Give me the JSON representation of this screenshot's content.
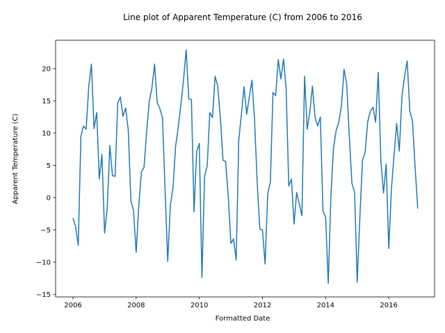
{
  "chart_data": {
    "type": "line",
    "title": "Line plot of Apparent Temperature (C) from 2006 to 2016",
    "xlabel": "Formatted Date",
    "ylabel": "Apparent Temperature (C)",
    "xlim": [
      2005.45,
      2017.45
    ],
    "ylim": [
      -15.4,
      24.4
    ],
    "xticks": [
      2006,
      2008,
      2010,
      2012,
      2014,
      2016
    ],
    "xtick_labels": [
      "2006",
      "2008",
      "2010",
      "2012",
      "2014",
      "2016"
    ],
    "yticks": [
      -15,
      -10,
      -5,
      0,
      5,
      10,
      15,
      20
    ],
    "ytick_labels": [
      "−15",
      "−10",
      "−5",
      "0",
      "5",
      "10",
      "15",
      "20"
    ],
    "color": "#1f77b4",
    "series": [
      {
        "name": "Apparent Temperature (C)",
        "x": [
          2006.0,
          2006.083,
          2006.167,
          2006.25,
          2006.333,
          2006.417,
          2006.5,
          2006.583,
          2006.667,
          2006.75,
          2006.833,
          2006.917,
          2007.0,
          2007.083,
          2007.167,
          2007.25,
          2007.333,
          2007.417,
          2007.5,
          2007.583,
          2007.667,
          2007.75,
          2007.833,
          2007.917,
          2008.0,
          2008.083,
          2008.167,
          2008.25,
          2008.333,
          2008.417,
          2008.5,
          2008.583,
          2008.667,
          2008.75,
          2008.833,
          2008.917,
          2009.0,
          2009.083,
          2009.167,
          2009.25,
          2009.333,
          2009.417,
          2009.5,
          2009.583,
          2009.667,
          2009.75,
          2009.833,
          2009.917,
          2010.0,
          2010.083,
          2010.167,
          2010.25,
          2010.333,
          2010.417,
          2010.5,
          2010.583,
          2010.667,
          2010.75,
          2010.833,
          2010.917,
          2011.0,
          2011.083,
          2011.167,
          2011.25,
          2011.333,
          2011.417,
          2011.5,
          2011.583,
          2011.667,
          2011.75,
          2011.833,
          2011.917,
          2012.0,
          2012.083,
          2012.167,
          2012.25,
          2012.333,
          2012.417,
          2012.5,
          2012.583,
          2012.667,
          2012.75,
          2012.833,
          2012.917,
          2013.0,
          2013.083,
          2013.167,
          2013.25,
          2013.333,
          2013.417,
          2013.5,
          2013.583,
          2013.667,
          2013.75,
          2013.833,
          2013.917,
          2014.0,
          2014.083,
          2014.167,
          2014.25,
          2014.333,
          2014.417,
          2014.5,
          2014.583,
          2014.667,
          2014.75,
          2014.833,
          2014.917,
          2015.0,
          2015.083,
          2015.167,
          2015.25,
          2015.333,
          2015.417,
          2015.5,
          2015.583,
          2015.667,
          2015.75,
          2015.833,
          2015.917,
          2016.0,
          2016.083,
          2016.167,
          2016.25,
          2016.333,
          2016.417,
          2016.5,
          2016.583,
          2016.667,
          2016.75,
          2016.833,
          2016.917
        ],
        "y": [
          -3.2,
          -4.5,
          -7.4,
          9.5,
          11.1,
          10.6,
          17.3,
          20.7,
          10.7,
          13.2,
          2.9,
          6.7,
          -5.5,
          -1.7,
          8.1,
          3.4,
          3.3,
          14.7,
          15.6,
          12.6,
          13.9,
          10.5,
          -0.5,
          -2.0,
          -8.5,
          -1.3,
          4.0,
          4.7,
          10.3,
          15.0,
          17.0,
          20.7,
          14.7,
          13.8,
          12.4,
          1.2,
          -9.9,
          -1.2,
          1.5,
          8.0,
          10.9,
          14.4,
          18.2,
          22.9,
          15.3,
          15.2,
          -2.2,
          7.2,
          8.4,
          -12.4,
          3.3,
          4.9,
          13.2,
          12.4,
          18.8,
          17.3,
          12.4,
          5.8,
          5.6,
          0.2,
          -7.1,
          -6.4,
          -9.7,
          9.0,
          12.9,
          17.2,
          12.9,
          15.6,
          18.2,
          12.0,
          2.3,
          -4.9,
          -5.0,
          -10.3,
          0.6,
          2.4,
          16.3,
          15.8,
          21.4,
          18.4,
          21.5,
          16.8,
          1.8,
          2.9,
          -4.1,
          0.8,
          -1.0,
          -2.8,
          18.8,
          10.6,
          13.3,
          17.3,
          12.4,
          11.1,
          12.5,
          -2.1,
          -3.0,
          -13.3,
          0.2,
          7.7,
          10.4,
          11.7,
          14.2,
          19.9,
          17.6,
          9.5,
          2.2,
          0.9,
          -13.1,
          -3.3,
          5.8,
          7.0,
          11.8,
          13.4,
          14.0,
          11.7,
          19.4,
          5.7,
          0.7,
          5.2,
          -7.9,
          1.3,
          6.6,
          11.5,
          7.2,
          15.7,
          18.8,
          21.2,
          13.4,
          11.9,
          4.8,
          -1.7
        ]
      }
    ]
  }
}
